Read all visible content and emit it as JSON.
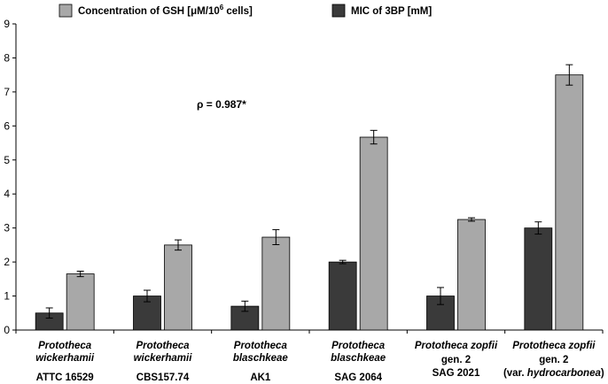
{
  "chart_data": {
    "type": "bar",
    "ylim": [
      0,
      9
    ],
    "yticks": [
      "0",
      "1",
      "2",
      "3",
      "4",
      "5",
      "6",
      "7",
      "8",
      "9"
    ],
    "grid": false,
    "legend_position": "top",
    "annotation": "ρ = 0.987*",
    "categories": [
      {
        "species": "Prototheca",
        "species2": "wickerhamii",
        "strain_line1": "ATTC 16529",
        "strain_line2": ""
      },
      {
        "species": "Prototheca",
        "species2": "wickerhamii",
        "strain_line1": "CBS157.74",
        "strain_line2": ""
      },
      {
        "species": "Prototheca",
        "species2": "blaschkeae",
        "strain_line1": "AK1",
        "strain_line2": ""
      },
      {
        "species": "Prototheca",
        "species2": "blaschkeae",
        "strain_line1": "SAG 2064",
        "strain_line2": ""
      },
      {
        "species": "Prototheca zopfii",
        "species2": "",
        "strain_line1": "gen. 2",
        "strain_line2": "SAG 2021"
      },
      {
        "species": "Prototheca zopfii",
        "species2": "",
        "strain_line1": "gen. 2",
        "strain_line2": "(var. hydrocarbonea)"
      }
    ],
    "series": [
      {
        "name": "MIC of 3BP [mM]",
        "color": "#3a3a3a",
        "values": [
          0.5,
          1.0,
          0.7,
          2.0,
          1.0,
          3.0
        ],
        "errors": [
          0.15,
          0.17,
          0.15,
          0.05,
          0.25,
          0.18
        ]
      },
      {
        "name": "Concentration of GSH [μM/10⁶ cells]",
        "color": "#a8a8a8",
        "values": [
          1.65,
          2.5,
          2.73,
          5.67,
          3.25,
          7.5
        ],
        "errors": [
          0.08,
          0.15,
          0.22,
          0.2,
          0.05,
          0.3
        ]
      }
    ],
    "legend": {
      "gsh_prefix": "Concentration of GSH [μM/10",
      "gsh_sup": "6",
      "gsh_suffix": " cells]",
      "mic": "MIC of 3BP [mM]"
    }
  }
}
